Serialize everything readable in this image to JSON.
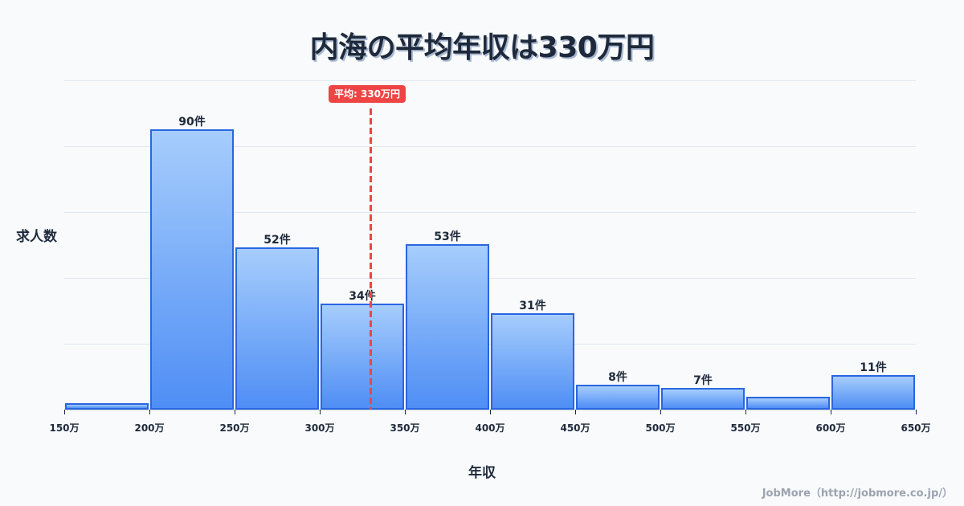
{
  "title": "内海の平均年収は330万円",
  "chart_data": {
    "type": "bar",
    "title": "内海の平均年収は330万円",
    "xlabel": "年収",
    "ylabel": "求人数",
    "bins": [
      {
        "from": 150,
        "to": 200,
        "value": 2,
        "label": ""
      },
      {
        "from": 200,
        "to": 250,
        "value": 90,
        "label": "90件"
      },
      {
        "from": 250,
        "to": 300,
        "value": 52,
        "label": "52件"
      },
      {
        "from": 300,
        "to": 350,
        "value": 34,
        "label": "34件"
      },
      {
        "from": 350,
        "to": 400,
        "value": 53,
        "label": "53件"
      },
      {
        "from": 400,
        "to": 450,
        "value": 31,
        "label": "31件"
      },
      {
        "from": 450,
        "to": 500,
        "value": 8,
        "label": "8件"
      },
      {
        "from": 500,
        "to": 550,
        "value": 7,
        "label": "7件"
      },
      {
        "from": 550,
        "to": 600,
        "value": 4,
        "label": ""
      },
      {
        "from": 600,
        "to": 650,
        "value": 11,
        "label": "11件"
      }
    ],
    "categories": [
      "150-200万",
      "200-250万",
      "250-300万",
      "300-350万",
      "350-400万",
      "400-450万",
      "450-500万",
      "500-550万",
      "550-600万",
      "600-650万"
    ],
    "values": [
      2,
      90,
      52,
      34,
      53,
      31,
      8,
      7,
      4,
      11
    ],
    "x_ticks": [
      "150万",
      "200万",
      "250万",
      "300万",
      "350万",
      "400万",
      "450万",
      "500万",
      "550万",
      "600万",
      "650万"
    ],
    "xlim": [
      150,
      650
    ],
    "grid": true,
    "mean": {
      "value": 330,
      "label": "平均: 330万円",
      "color": "#ef4444"
    },
    "bar_color_top": "#a6cdfc",
    "bar_color_bottom": "#4f8ef5",
    "bar_border": "#2a66e0"
  },
  "credit": "JobMore（http://jobmore.co.jp/）"
}
